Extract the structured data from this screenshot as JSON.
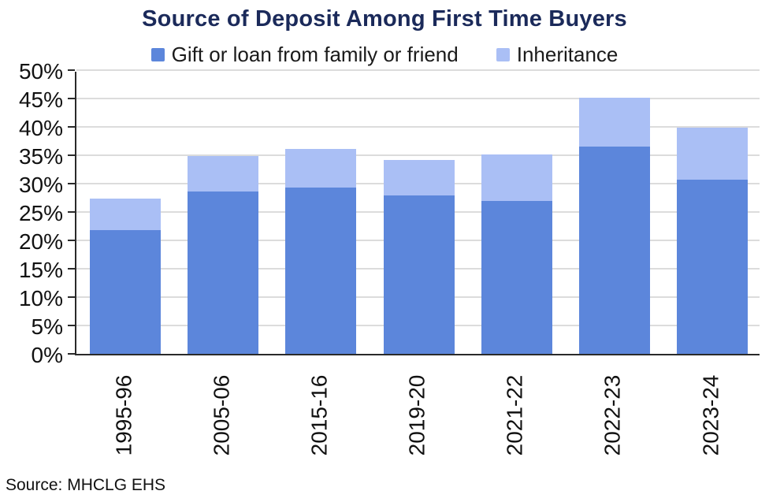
{
  "title": "Source of Deposit Among First Time Buyers",
  "source": "Source: MHCLG EHS",
  "legend": [
    {
      "label": "Gift or loan from family or friend",
      "color": "#5c86db"
    },
    {
      "label": "Inheritance",
      "color": "#aabff5"
    }
  ],
  "colors": {
    "gift_series": "#5c86db",
    "inheritance_series": "#aabff5",
    "title_navy": "#1b2a5a",
    "gridline_gray": "#dcdcdc",
    "axis_dark": "#2a2a2a"
  },
  "chart_data": {
    "type": "bar",
    "stacked": true,
    "title": "Source of Deposit Among First Time Buyers",
    "categories": [
      "1995-96",
      "2005-06",
      "2015-16",
      "2019-20",
      "2021-22",
      "2022-23",
      "2023-24"
    ],
    "series": [
      {
        "name": "Gift or loan from family or friend",
        "color": "#5c86db",
        "values": [
          21.8,
          28.6,
          29.3,
          27.9,
          27.0,
          36.5,
          30.7
        ]
      },
      {
        "name": "Inheritance",
        "color": "#aabff5",
        "values": [
          5.5,
          6.2,
          6.8,
          6.3,
          8.2,
          8.6,
          9.1
        ]
      }
    ],
    "stack_totals": [
      27.3,
      34.8,
      36.1,
      34.2,
      35.2,
      45.1,
      39.8
    ],
    "xlabel": "",
    "ylabel": "",
    "ylim": [
      0,
      50
    ],
    "y_tick_step": 5,
    "y_tick_labels": [
      "0%",
      "5%",
      "10%",
      "15%",
      "20%",
      "25%",
      "30%",
      "35%",
      "40%",
      "45%",
      "50%"
    ],
    "grid": true,
    "legend_position": "top",
    "x_tick_rotation": 90
  }
}
